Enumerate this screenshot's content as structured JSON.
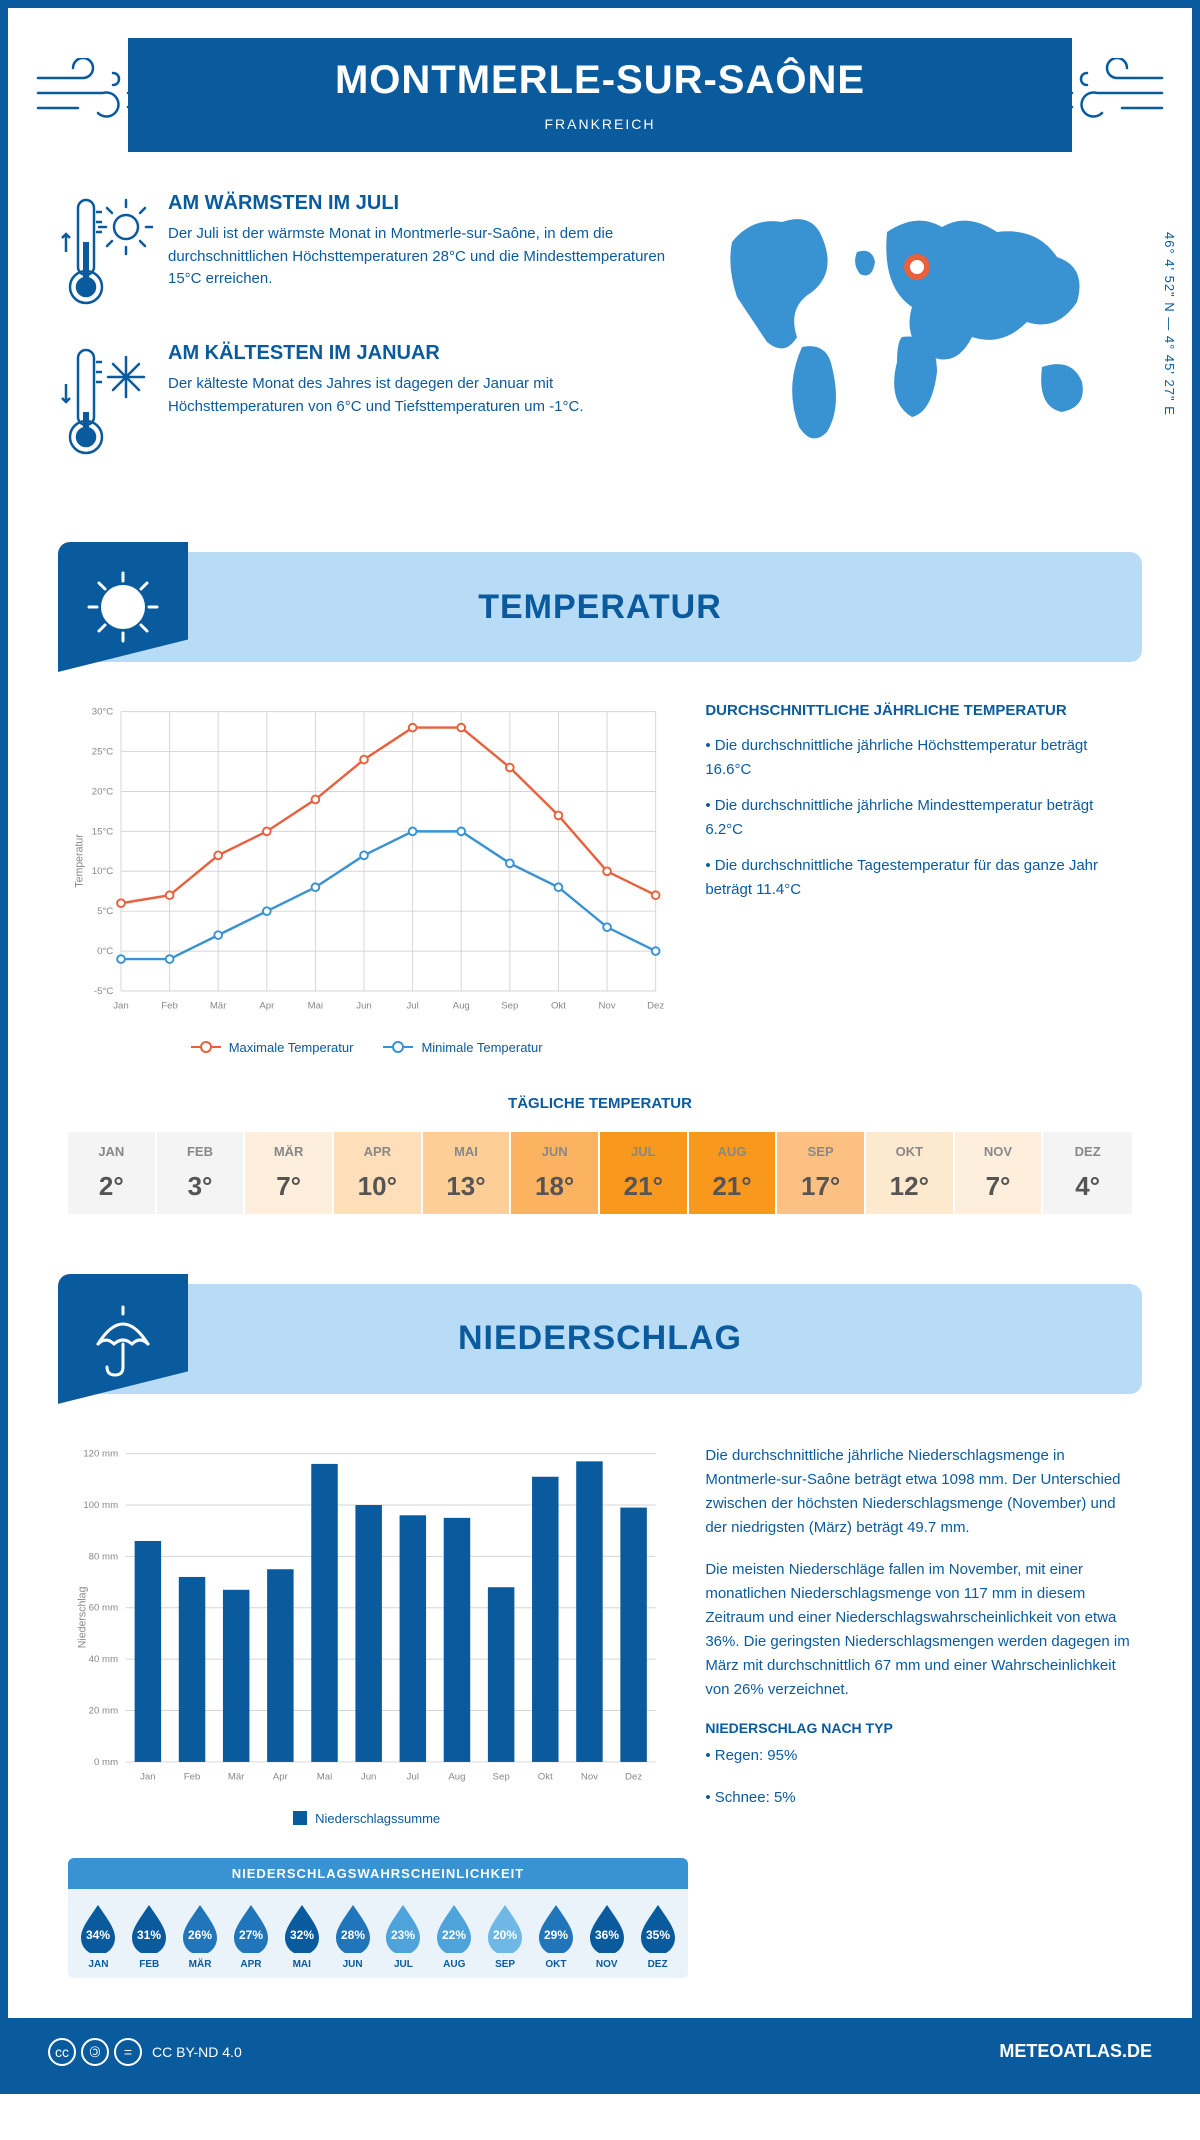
{
  "header": {
    "title": "MONTMERLE-SUR-SAÔNE",
    "subtitle": "FRANKREICH"
  },
  "coords": "46° 4' 52\" N — 4° 45' 27\" E",
  "facts": {
    "warm": {
      "title": "AM WÄRMSTEN IM JULI",
      "text": "Der Juli ist der wärmste Monat in Montmerle-sur-Saône, in dem die durchschnittlichen Höchsttemperaturen 28°C und die Mindesttemperaturen 15°C erreichen."
    },
    "cold": {
      "title": "AM KÄLTESTEN IM JANUAR",
      "text": "Der kälteste Monat des Jahres ist dagegen der Januar mit Höchsttemperaturen von 6°C und Tiefsttemperaturen um -1°C."
    }
  },
  "sections": {
    "temp": "TEMPERATUR",
    "precip": "NIEDERSCHLAG"
  },
  "temp_chart": {
    "months": [
      "Jan",
      "Feb",
      "Mär",
      "Apr",
      "Mai",
      "Jun",
      "Jul",
      "Aug",
      "Sep",
      "Okt",
      "Nov",
      "Dez"
    ],
    "max": [
      6,
      7,
      12,
      15,
      19,
      24,
      28,
      28,
      23,
      17,
      10,
      7
    ],
    "min": [
      -1,
      -1,
      2,
      5,
      8,
      12,
      15,
      15,
      11,
      8,
      3,
      0
    ],
    "y_min": -5,
    "y_max": 30,
    "y_step": 5,
    "y_ticks": [
      "-5°C",
      "0°C",
      "5°C",
      "10°C",
      "15°C",
      "20°C",
      "25°C",
      "30°C"
    ],
    "y_label": "Temperatur",
    "max_color": "#e8603c",
    "min_color": "#3992d2",
    "grid_color": "#d5d5d5",
    "legend_max": "Maximale Temperatur",
    "legend_min": "Minimale Temperatur"
  },
  "temp_text": {
    "heading": "DURCHSCHNITTLICHE JÄHRLICHE TEMPERATUR",
    "b1": "• Die durchschnittliche jährliche Höchsttemperatur beträgt 16.6°C",
    "b2": "• Die durchschnittliche jährliche Mindesttemperatur beträgt 6.2°C",
    "b3": "• Die durchschnittliche Tagestemperatur für das ganze Jahr beträgt 11.4°C"
  },
  "daily": {
    "title": "TÄGLICHE TEMPERATUR",
    "months": [
      "JAN",
      "FEB",
      "MÄR",
      "APR",
      "MAI",
      "JUN",
      "JUL",
      "AUG",
      "SEP",
      "OKT",
      "NOV",
      "DEZ"
    ],
    "values": [
      "2°",
      "3°",
      "7°",
      "10°",
      "13°",
      "18°",
      "21°",
      "21°",
      "17°",
      "12°",
      "7°",
      "4°"
    ],
    "colors": [
      "#f4f4f4",
      "#f4f4f4",
      "#feeedc",
      "#fedfb9",
      "#fdcf97",
      "#fbb361",
      "#f8981d",
      "#f8981d",
      "#fcc182",
      "#fde9ce",
      "#feeedc",
      "#f4f4f4"
    ]
  },
  "precip_chart": {
    "months": [
      "Jan",
      "Feb",
      "Mär",
      "Apr",
      "Mai",
      "Jun",
      "Jul",
      "Aug",
      "Sep",
      "Okt",
      "Nov",
      "Dez"
    ],
    "values": [
      86,
      72,
      67,
      75,
      116,
      100,
      96,
      95,
      68,
      111,
      117,
      99
    ],
    "y_min": 0,
    "y_max": 120,
    "y_step": 20,
    "y_ticks": [
      "0 mm",
      "20 mm",
      "40 mm",
      "60 mm",
      "80 mm",
      "100 mm",
      "120 mm"
    ],
    "y_label": "Niederschlag",
    "bar_color": "#0a5a9e",
    "grid_color": "#d5d5d5",
    "legend": "Niederschlagssumme"
  },
  "precip_text": {
    "p1": "Die durchschnittliche jährliche Niederschlagsmenge in Montmerle-sur-Saône beträgt etwa 1098 mm. Der Unterschied zwischen der höchsten Niederschlagsmenge (November) und der niedrigsten (März) beträgt 49.7 mm.",
    "p2": "Die meisten Niederschläge fallen im November, mit einer monatlichen Niederschlagsmenge von 117 mm in diesem Zeitraum und einer Niederschlagswahrscheinlichkeit von etwa 36%. Die geringsten Niederschlagsmengen werden dagegen im März mit durchschnittlich 67 mm und einer Wahrscheinlichkeit von 26% verzeichnet.",
    "h": "NIEDERSCHLAG NACH TYP",
    "t1": "• Regen: 95%",
    "t2": "• Schnee: 5%"
  },
  "prob": {
    "title": "NIEDERSCHLAGSWAHRSCHEINLICHKEIT",
    "months": [
      "JAN",
      "FEB",
      "MÄR",
      "APR",
      "MAI",
      "JUN",
      "JUL",
      "AUG",
      "SEP",
      "OKT",
      "NOV",
      "DEZ"
    ],
    "values": [
      "34%",
      "31%",
      "26%",
      "27%",
      "32%",
      "28%",
      "23%",
      "22%",
      "20%",
      "29%",
      "36%",
      "35%"
    ],
    "colors": [
      "#0a5a9e",
      "#0a5a9e",
      "#2176bb",
      "#2176bb",
      "#0a5a9e",
      "#2176bb",
      "#4fa3db",
      "#4fa3db",
      "#6fb8e5",
      "#2176bb",
      "#0a5a9e",
      "#0a5a9e"
    ]
  },
  "footer": {
    "license": "CC BY-ND 4.0",
    "site": "METEOATLAS.DE"
  }
}
